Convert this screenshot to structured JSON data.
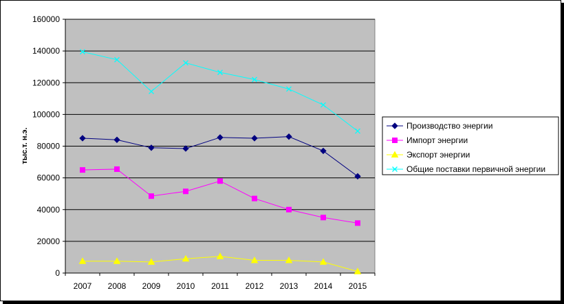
{
  "chart_data": {
    "type": "line",
    "title": "",
    "xlabel": "",
    "ylabel": "тыс.т. н.э.",
    "x": [
      "2007",
      "2008",
      "2009",
      "2010",
      "2011",
      "2012",
      "2013",
      "2014",
      "2015"
    ],
    "ylim": [
      0,
      160000
    ],
    "yticks": [
      "0",
      "20000",
      "40000",
      "60000",
      "80000",
      "100000",
      "120000",
      "140000",
      "160000"
    ],
    "grid": "horizontal",
    "legend_position": "right",
    "plot_background": "#c0c0c0",
    "series": [
      {
        "name": "Производство энергии",
        "color": "#000080",
        "marker": "diamond",
        "values": [
          85000,
          84000,
          79000,
          78500,
          85500,
          85000,
          86000,
          77000,
          61000
        ]
      },
      {
        "name": "Импорт энергии",
        "color": "#ff00ff",
        "marker": "square",
        "values": [
          65000,
          65500,
          48500,
          51500,
          58000,
          47000,
          40000,
          35000,
          31500
        ]
      },
      {
        "name": "Экспорт энергии",
        "color": "#ffff00",
        "marker": "triangle",
        "values": [
          7500,
          7500,
          7000,
          9000,
          10500,
          8000,
          8000,
          7000,
          1000
        ]
      },
      {
        "name": "Общие поставки первичной энергии",
        "color": "#00ffff",
        "marker": "x",
        "values": [
          139500,
          134500,
          114500,
          132500,
          126500,
          122000,
          116000,
          106000,
          89500
        ]
      }
    ]
  }
}
